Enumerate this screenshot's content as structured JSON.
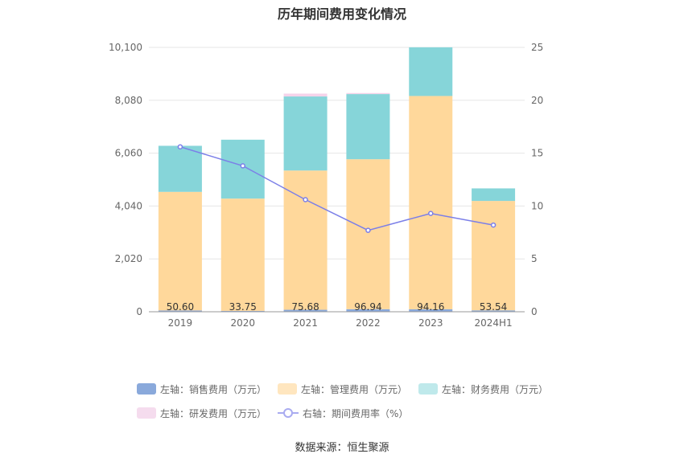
{
  "title": "历年期间费用变化情况",
  "source_label": "数据来源：恒生聚源",
  "chart_data": {
    "type": "bar",
    "stacked": true,
    "categories": [
      "2019",
      "2020",
      "2021",
      "2022",
      "2023",
      "2024H1"
    ],
    "left_axis": {
      "ylim": [
        0,
        10100
      ],
      "ticks": [
        "0",
        "2,020",
        "4,040",
        "6,060",
        "8,080",
        "10,100"
      ]
    },
    "right_axis": {
      "ylim": [
        0,
        25
      ],
      "ticks": [
        "0",
        "5",
        "10",
        "15",
        "20",
        "25"
      ]
    },
    "series": [
      {
        "name": "左轴：销售费用（万元）",
        "axis": "left",
        "color": "#8aa9db",
        "values": [
          50.6,
          33.75,
          75.68,
          96.94,
          94.16,
          53.54
        ]
      },
      {
        "name": "左轴：管理费用（万元）",
        "axis": "left",
        "color": "#ffd89b",
        "values": [
          4530,
          4290,
          5320,
          5730,
          8150,
          4180
        ]
      },
      {
        "name": "左轴：财务费用（万元）",
        "axis": "left",
        "color": "#86d5d9",
        "values": [
          1760,
          2250,
          2830,
          2490,
          1860,
          480
        ]
      },
      {
        "name": "左轴：研发费用（万元）",
        "axis": "left",
        "color": "#f5d3ea",
        "values": [
          0,
          0,
          110,
          40,
          0,
          0
        ]
      },
      {
        "name": "右轴：期间费用率（%）",
        "axis": "right",
        "type": "line",
        "color": "#7b7fe8",
        "values": [
          15.6,
          13.8,
          10.6,
          7.7,
          9.3,
          8.2
        ]
      }
    ],
    "data_labels": [
      "50.60",
      "33.75",
      "75.68",
      "96.94",
      "94.16",
      "53.54"
    ],
    "grid": true,
    "legend_position": "bottom"
  }
}
